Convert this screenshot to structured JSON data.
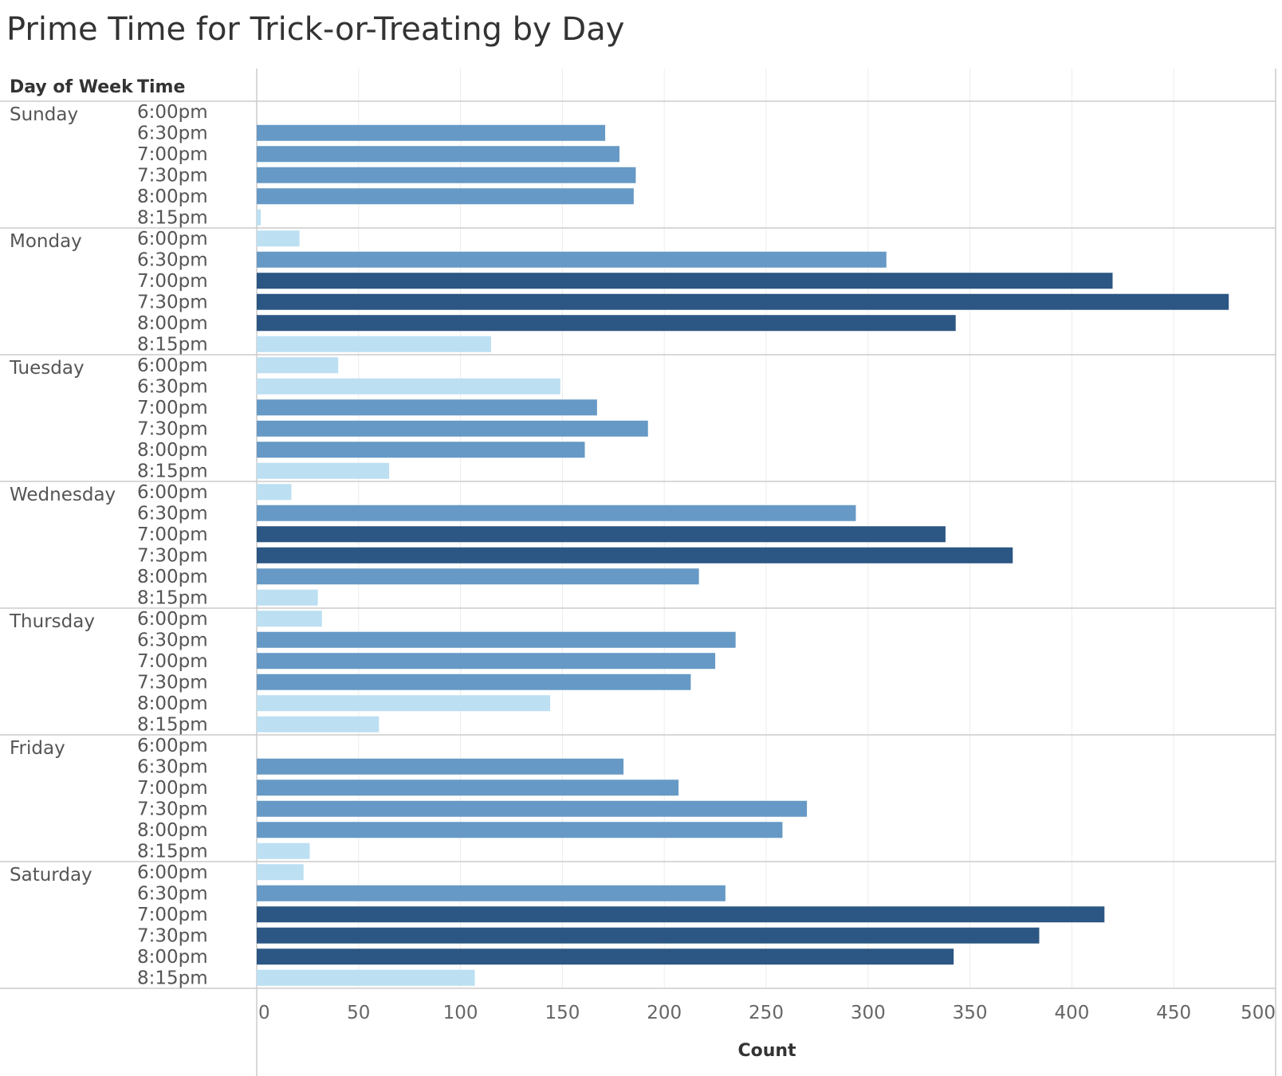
{
  "chart_data": {
    "type": "bar",
    "orientation": "horizontal",
    "title": "Prime Time for Trick-or-Treating by Day",
    "row_headers": [
      "Day of Week",
      "Time"
    ],
    "xlabel": "Count",
    "xlim": [
      0,
      500
    ],
    "xticks": [
      0,
      50,
      100,
      150,
      200,
      250,
      300,
      350,
      400,
      450,
      500
    ],
    "grid": true,
    "times": [
      "6:00pm",
      "6:30pm",
      "7:00pm",
      "7:30pm",
      "8:00pm",
      "8:15pm"
    ],
    "groups": [
      {
        "day": "Sunday",
        "values": [
          0,
          171,
          178,
          186,
          185,
          2
        ]
      },
      {
        "day": "Monday",
        "values": [
          21,
          309,
          420,
          477,
          343,
          115
        ]
      },
      {
        "day": "Tuesday",
        "values": [
          40,
          149,
          167,
          192,
          161,
          65
        ]
      },
      {
        "day": "Wednesday",
        "values": [
          17,
          294,
          338,
          371,
          217,
          30
        ]
      },
      {
        "day": "Thursday",
        "values": [
          32,
          235,
          225,
          213,
          144,
          60
        ]
      },
      {
        "day": "Friday",
        "values": [
          0,
          180,
          207,
          270,
          258,
          26
        ]
      },
      {
        "day": "Saturday",
        "values": [
          23,
          230,
          416,
          384,
          342,
          107
        ]
      }
    ],
    "color_scale": {
      "light": "#bcdff2",
      "medium": "#6699c5",
      "dark": "#2c5683",
      "medium_min": 160,
      "dark_min": 330
    }
  }
}
